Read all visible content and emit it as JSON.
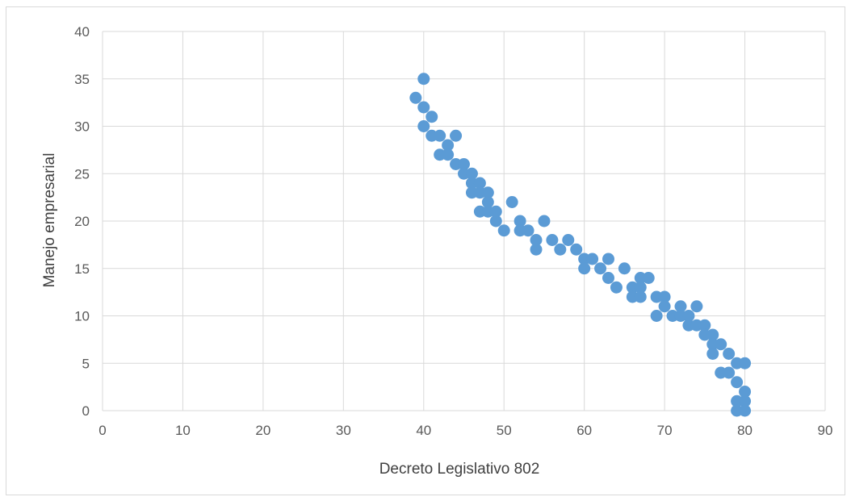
{
  "chart_data": {
    "type": "scatter",
    "title": "",
    "xlabel": "Decreto Legislativo 802",
    "ylabel": "Manejo empresarial",
    "xlim": [
      0,
      90
    ],
    "ylim": [
      0,
      40
    ],
    "x_ticks": [
      "0",
      "10",
      "20",
      "30",
      "40",
      "50",
      "60",
      "70",
      "80",
      "90"
    ],
    "y_ticks": [
      "0",
      "5",
      "10",
      "15",
      "20",
      "25",
      "30",
      "35",
      "40"
    ],
    "grid": true,
    "legend": "none",
    "marker_color": "#5b9bd5",
    "series": [
      {
        "points": [
          [
            39,
            33
          ],
          [
            40,
            35
          ],
          [
            40,
            32
          ],
          [
            40,
            30
          ],
          [
            41,
            31
          ],
          [
            41,
            29
          ],
          [
            42,
            29
          ],
          [
            42,
            27
          ],
          [
            43,
            28
          ],
          [
            43,
            27
          ],
          [
            44,
            29
          ],
          [
            44,
            26
          ],
          [
            45,
            26
          ],
          [
            45,
            25
          ],
          [
            46,
            25
          ],
          [
            46,
            24
          ],
          [
            46,
            23
          ],
          [
            47,
            24
          ],
          [
            47,
            23
          ],
          [
            47,
            21
          ],
          [
            48,
            23
          ],
          [
            48,
            22
          ],
          [
            48,
            21
          ],
          [
            49,
            21
          ],
          [
            49,
            20
          ],
          [
            50,
            19
          ],
          [
            51,
            22
          ],
          [
            52,
            20
          ],
          [
            52,
            19
          ],
          [
            53,
            19
          ],
          [
            54,
            18
          ],
          [
            54,
            17
          ],
          [
            55,
            20
          ],
          [
            56,
            18
          ],
          [
            57,
            17
          ],
          [
            58,
            18
          ],
          [
            59,
            17
          ],
          [
            60,
            16
          ],
          [
            60,
            15
          ],
          [
            61,
            16
          ],
          [
            62,
            15
          ],
          [
            63,
            16
          ],
          [
            63,
            14
          ],
          [
            64,
            13
          ],
          [
            65,
            15
          ],
          [
            66,
            13
          ],
          [
            66,
            12
          ],
          [
            67,
            14
          ],
          [
            67,
            13
          ],
          [
            67,
            12
          ],
          [
            68,
            14
          ],
          [
            69,
            12
          ],
          [
            69,
            10
          ],
          [
            70,
            12
          ],
          [
            70,
            11
          ],
          [
            71,
            10
          ],
          [
            72,
            11
          ],
          [
            72,
            10
          ],
          [
            73,
            10
          ],
          [
            73,
            9
          ],
          [
            74,
            11
          ],
          [
            74,
            9
          ],
          [
            75,
            9
          ],
          [
            75,
            8
          ],
          [
            76,
            8
          ],
          [
            76,
            7
          ],
          [
            76,
            6
          ],
          [
            77,
            7
          ],
          [
            77,
            4
          ],
          [
            78,
            6
          ],
          [
            78,
            4
          ],
          [
            79,
            5
          ],
          [
            79,
            3
          ],
          [
            79,
            1
          ],
          [
            79,
            0
          ],
          [
            80,
            5
          ],
          [
            80,
            2
          ],
          [
            80,
            1
          ],
          [
            80,
            0
          ]
        ]
      }
    ]
  }
}
